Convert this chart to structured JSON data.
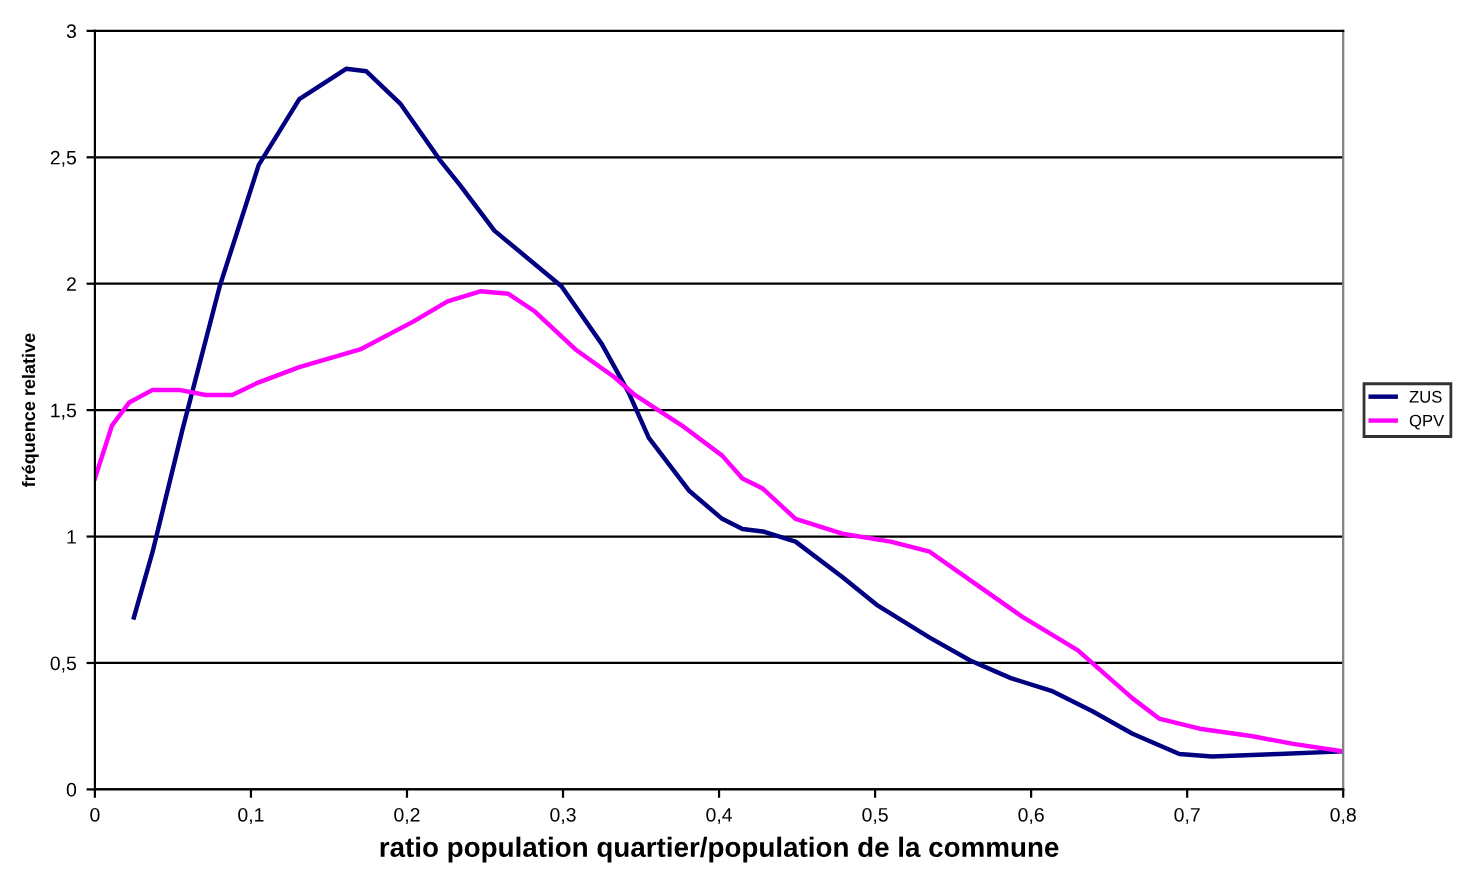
{
  "chart_data": {
    "type": "line",
    "xlabel": "ratio population quartier/population de la commune",
    "ylabel": "fréquence relative",
    "xlim": [
      0,
      0.8
    ],
    "ylim": [
      0,
      3
    ],
    "xticks": [
      0,
      {
        "value": 0.1,
        "label": "0,1"
      },
      {
        "value": 0.2,
        "label": "0,2"
      },
      {
        "value": 0.3,
        "label": "0,3"
      },
      {
        "value": 0.4,
        "label": "0,4"
      },
      {
        "value": 0.5,
        "label": "0,5"
      },
      {
        "value": 0.6,
        "label": "0,6"
      },
      {
        "value": 0.7,
        "label": "0,7"
      },
      {
        "value": 0.8,
        "label": "0,8"
      }
    ],
    "yticks": [
      0,
      {
        "value": 0.5,
        "label": "0,5"
      },
      1,
      {
        "value": 1.5,
        "label": "1,5"
      },
      2,
      {
        "value": 2.5,
        "label": "2,5"
      },
      3
    ],
    "grid": "y",
    "legend": "right",
    "marker": "none",
    "line_style": "solid",
    "series": [
      {
        "name": "ZUS",
        "color": "#000080",
        "x": [
          0.025,
          0.037,
          0.056,
          0.08,
          0.105,
          0.131,
          0.161,
          0.174,
          0.196,
          0.221,
          0.234,
          0.256,
          0.299,
          0.325,
          0.342,
          0.355,
          0.381,
          0.402,
          0.415,
          0.428,
          0.449,
          0.479,
          0.501,
          0.535,
          0.561,
          0.587,
          0.613,
          0.639,
          0.665,
          0.695,
          0.716,
          0.759,
          0.798
        ],
        "values": [
          0.68,
          0.94,
          1.42,
          1.99,
          2.47,
          2.73,
          2.85,
          2.84,
          2.71,
          2.49,
          2.39,
          2.21,
          1.99,
          1.76,
          1.57,
          1.39,
          1.18,
          1.07,
          1.03,
          1.02,
          0.98,
          0.84,
          0.73,
          0.6,
          0.51,
          0.44,
          0.39,
          0.31,
          0.22,
          0.14,
          0.13,
          0.14,
          0.15
        ]
      },
      {
        "name": "QPV",
        "color": "#ff00ff",
        "x": [
          0,
          0.011,
          0.022,
          0.037,
          0.054,
          0.071,
          0.088,
          0.105,
          0.131,
          0.17,
          0.204,
          0.226,
          0.247,
          0.265,
          0.282,
          0.308,
          0.333,
          0.346,
          0.376,
          0.402,
          0.415,
          0.428,
          0.449,
          0.48,
          0.51,
          0.535,
          0.565,
          0.595,
          0.63,
          0.665,
          0.682,
          0.708,
          0.742,
          0.768,
          0.8
        ],
        "values": [
          1.23,
          1.44,
          1.53,
          1.58,
          1.58,
          1.56,
          1.56,
          1.61,
          1.67,
          1.74,
          1.85,
          1.93,
          1.97,
          1.96,
          1.89,
          1.74,
          1.63,
          1.56,
          1.44,
          1.32,
          1.23,
          1.19,
          1.07,
          1.01,
          0.98,
          0.94,
          0.81,
          0.68,
          0.55,
          0.36,
          0.28,
          0.24,
          0.21,
          0.18,
          0.15
        ]
      }
    ]
  }
}
